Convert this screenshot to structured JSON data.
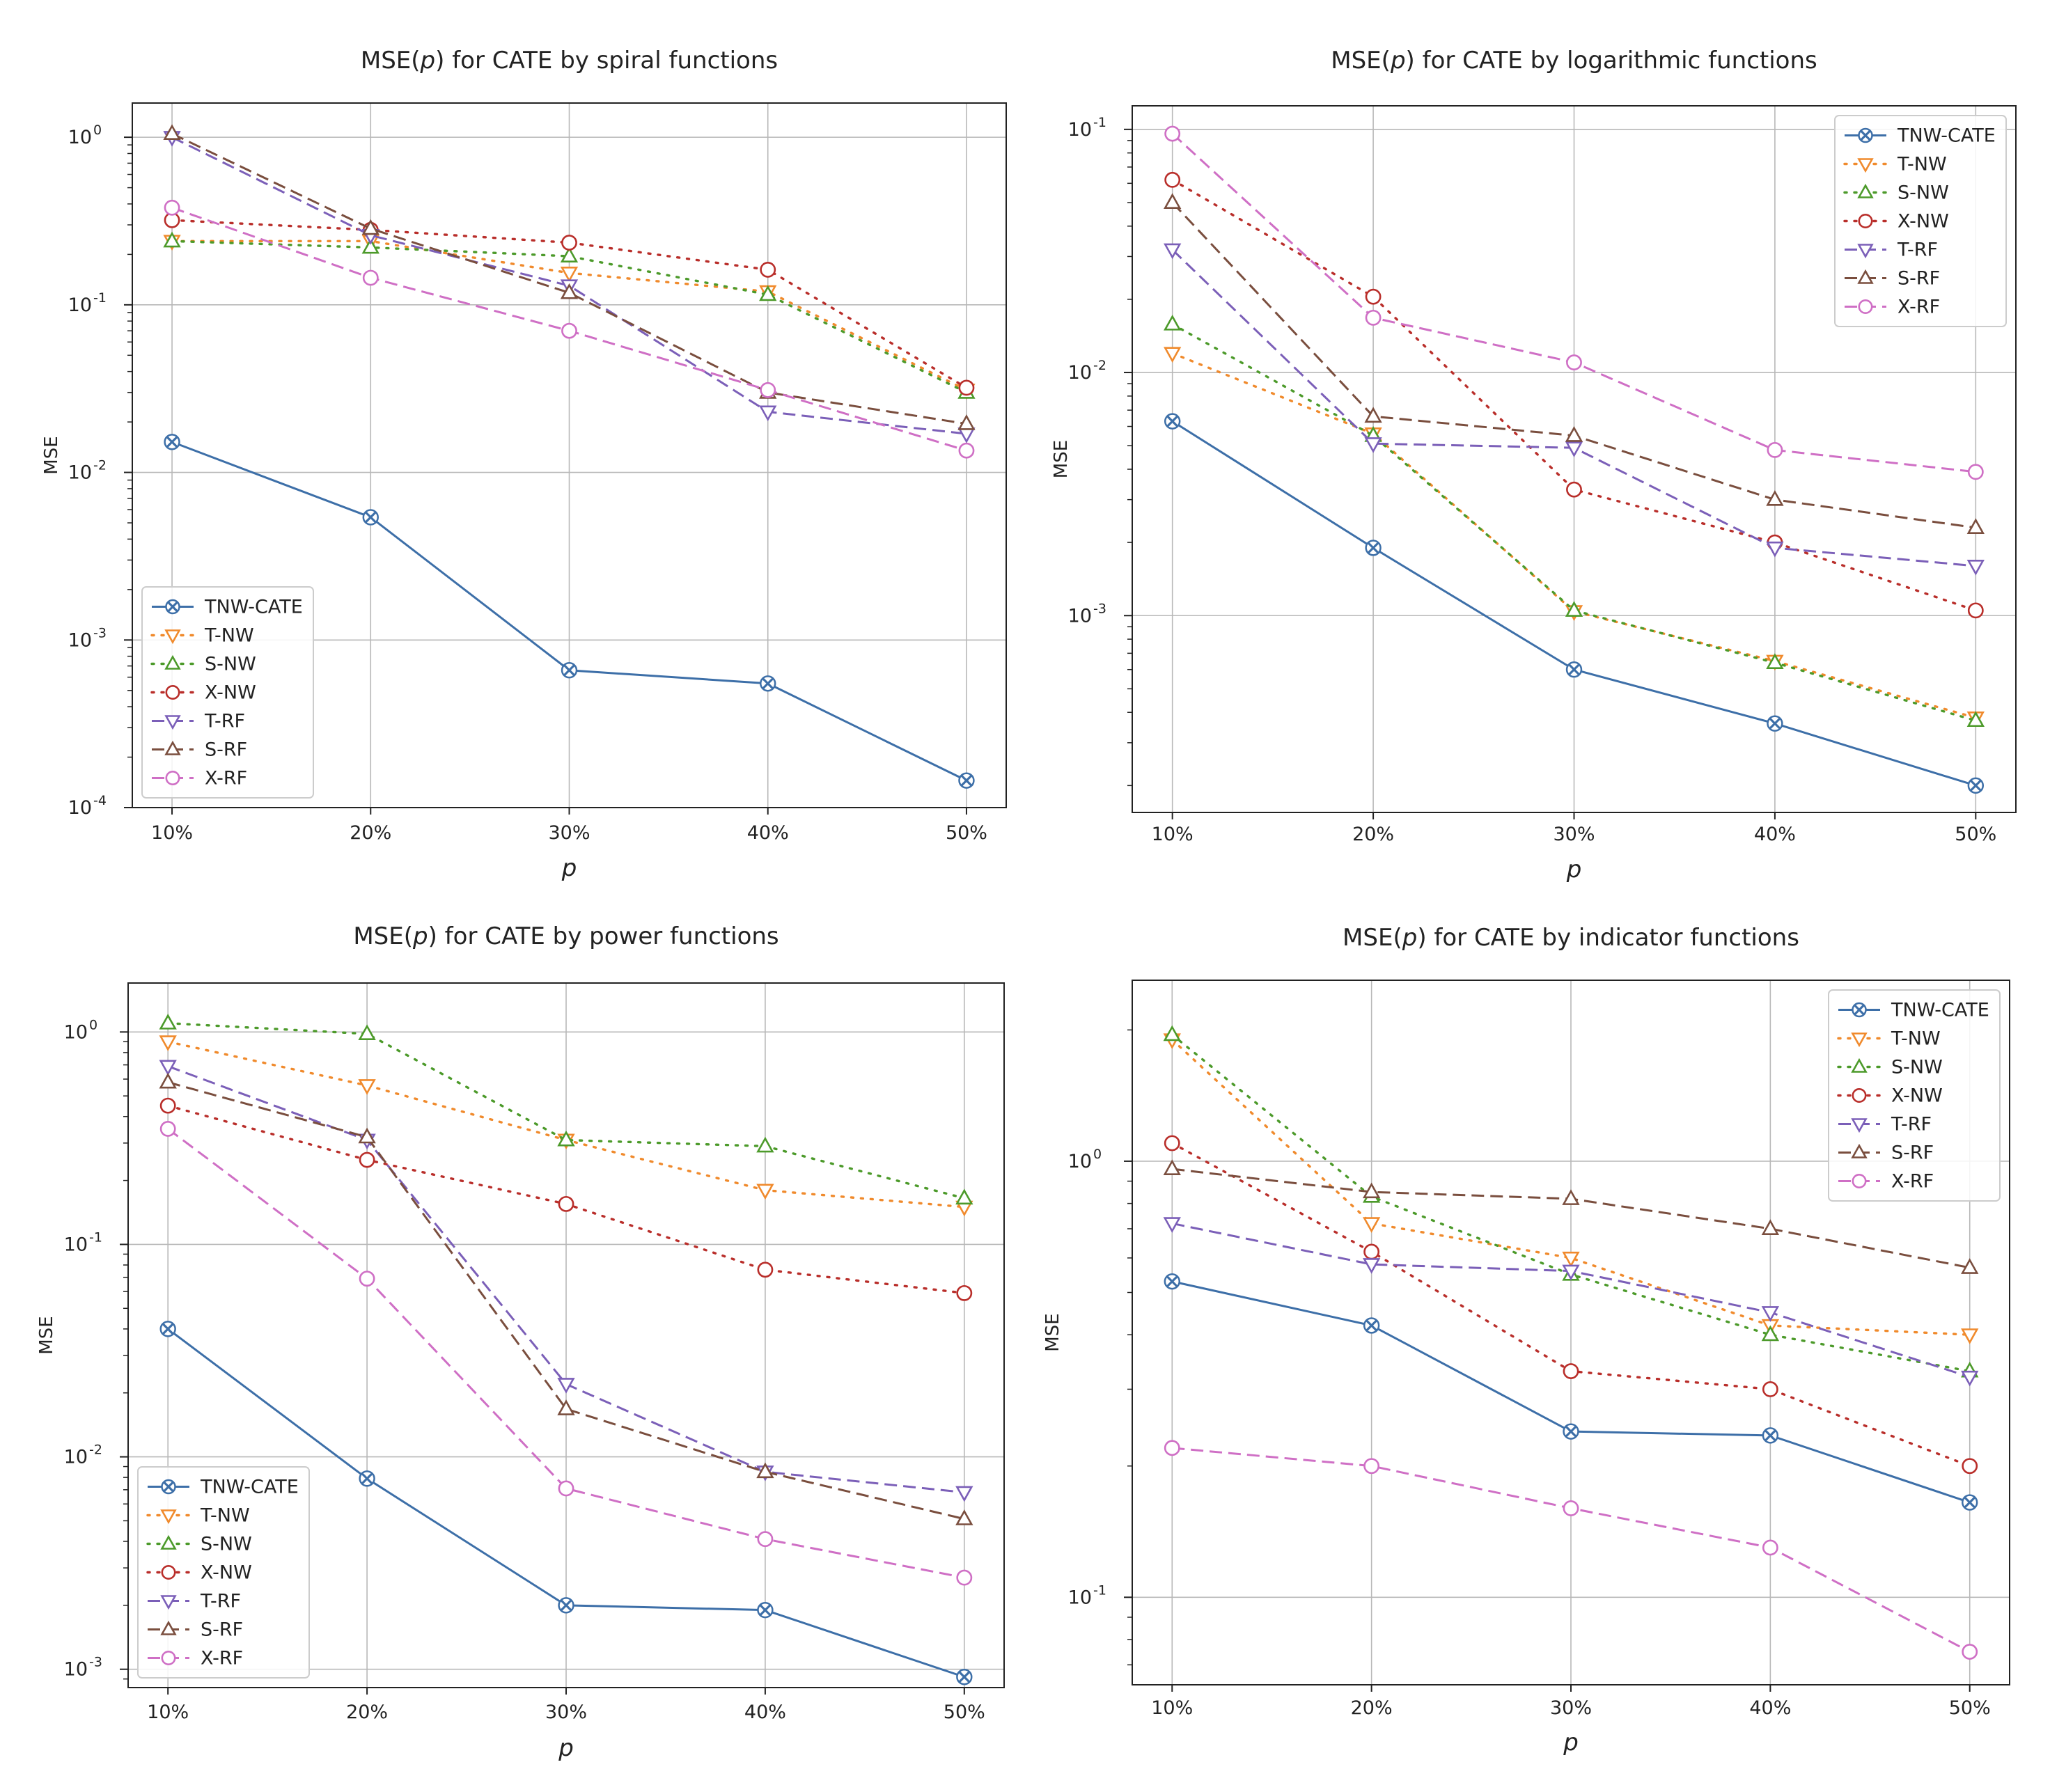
{
  "figure": {
    "background": "#ffffff"
  },
  "series_styles": [
    {
      "name": "TNW-CATE",
      "color": "#3d6fa8",
      "dash": "solid",
      "marker": "x"
    },
    {
      "name": "T-NW",
      "color": "#f08a2c",
      "dash": "dot",
      "marker": "tri-down"
    },
    {
      "name": "S-NW",
      "color": "#4c9a2a",
      "dash": "dot",
      "marker": "tri-up"
    },
    {
      "name": "X-NW",
      "color": "#b92e2a",
      "dash": "dot",
      "marker": "circle"
    },
    {
      "name": "T-RF",
      "color": "#7b5fb8",
      "dash": "dash",
      "marker": "tri-down"
    },
    {
      "name": "S-RF",
      "color": "#7a4e3e",
      "dash": "dash",
      "marker": "tri-up"
    },
    {
      "name": "X-RF",
      "color": "#cf6fc5",
      "dash": "dash",
      "marker": "circle"
    }
  ],
  "chart_data": [
    {
      "type": "line",
      "title_pre": "MSE(",
      "title_var": "p",
      "title_post": ") for CATE by spiral functions",
      "xlabel": "p",
      "ylabel": "MSE",
      "yscale": "log",
      "ylim": [
        0.0001,
        1.6
      ],
      "categories": [
        "10%",
        "20%",
        "30%",
        "40%",
        "50%"
      ],
      "yticks": [
        {
          "base": "10",
          "exp": "0",
          "value": 1
        },
        {
          "base": "10",
          "exp": "-1",
          "value": 0.1
        },
        {
          "base": "10",
          "exp": "-2",
          "value": 0.01
        },
        {
          "base": "10",
          "exp": "-3",
          "value": 0.001
        },
        {
          "base": "10",
          "exp": "-4",
          "value": 0.0001
        }
      ],
      "legend_position": "lower-left",
      "series": [
        {
          "name": "TNW-CATE",
          "values": [
            0.0152,
            0.0054,
            0.00066,
            0.00055,
            0.000145
          ]
        },
        {
          "name": "T-NW",
          "values": [
            0.24,
            0.24,
            0.155,
            0.12,
            0.031
          ]
        },
        {
          "name": "S-NW",
          "values": [
            0.24,
            0.22,
            0.195,
            0.115,
            0.03
          ]
        },
        {
          "name": "X-NW",
          "values": [
            0.32,
            0.28,
            0.235,
            0.162,
            0.032
          ]
        },
        {
          "name": "T-RF",
          "values": [
            1.0,
            0.26,
            0.13,
            0.023,
            0.017
          ]
        },
        {
          "name": "S-RF",
          "values": [
            1.05,
            0.285,
            0.118,
            0.03,
            0.0195
          ]
        },
        {
          "name": "X-RF",
          "values": [
            0.38,
            0.145,
            0.07,
            0.031,
            0.0135
          ]
        }
      ]
    },
    {
      "type": "line",
      "title_pre": "MSE(",
      "title_var": "p",
      "title_post": ") for CATE by logarithmic functions",
      "xlabel": "p",
      "ylabel": "MSE",
      "yscale": "log",
      "ylim": [
        0.000155,
        0.125
      ],
      "categories": [
        "10%",
        "20%",
        "30%",
        "40%",
        "50%"
      ],
      "yticks": [
        {
          "base": "10",
          "exp": "-1",
          "value": 0.1
        },
        {
          "base": "10",
          "exp": "-2",
          "value": 0.01
        },
        {
          "base": "10",
          "exp": "-3",
          "value": 0.001
        }
      ],
      "legend_position": "upper-right",
      "series": [
        {
          "name": "TNW-CATE",
          "values": [
            0.0063,
            0.0019,
            0.0006,
            0.00036,
            0.0002
          ]
        },
        {
          "name": "T-NW",
          "values": [
            0.012,
            0.0056,
            0.00104,
            0.00065,
            0.00038
          ]
        },
        {
          "name": "S-NW",
          "values": [
            0.0158,
            0.0055,
            0.00105,
            0.00064,
            0.00037
          ]
        },
        {
          "name": "X-NW",
          "values": [
            0.062,
            0.0205,
            0.0033,
            0.002,
            0.00105
          ]
        },
        {
          "name": "T-RF",
          "values": [
            0.032,
            0.0051,
            0.0049,
            0.0019,
            0.0016
          ]
        },
        {
          "name": "S-RF",
          "values": [
            0.05,
            0.0066,
            0.0055,
            0.003,
            0.0023
          ]
        },
        {
          "name": "X-RF",
          "values": [
            0.096,
            0.0168,
            0.011,
            0.0048,
            0.0039
          ]
        }
      ]
    },
    {
      "type": "line",
      "title_pre": "MSE(",
      "title_var": "p",
      "title_post": ") for CATE by power functions",
      "xlabel": "p",
      "ylabel": "MSE",
      "yscale": "log",
      "ylim": [
        0.00082,
        1.7
      ],
      "categories": [
        "10%",
        "20%",
        "30%",
        "40%",
        "50%"
      ],
      "yticks": [
        {
          "base": "10",
          "exp": "0",
          "value": 1
        },
        {
          "base": "10",
          "exp": "-1",
          "value": 0.1
        },
        {
          "base": "10",
          "exp": "-2",
          "value": 0.01
        },
        {
          "base": "10",
          "exp": "-3",
          "value": 0.001
        }
      ],
      "legend_position": "lower-left",
      "series": [
        {
          "name": "TNW-CATE",
          "values": [
            0.04,
            0.0079,
            0.002,
            0.0019,
            0.00092
          ]
        },
        {
          "name": "T-NW",
          "values": [
            0.9,
            0.56,
            0.31,
            0.18,
            0.15
          ]
        },
        {
          "name": "S-NW",
          "values": [
            1.1,
            0.98,
            0.31,
            0.29,
            0.165
          ]
        },
        {
          "name": "X-NW",
          "values": [
            0.45,
            0.25,
            0.155,
            0.076,
            0.059
          ]
        },
        {
          "name": "T-RF",
          "values": [
            0.69,
            0.31,
            0.022,
            0.0085,
            0.0068
          ]
        },
        {
          "name": "S-RF",
          "values": [
            0.58,
            0.32,
            0.0168,
            0.0085,
            0.0051
          ]
        },
        {
          "name": "X-RF",
          "values": [
            0.35,
            0.069,
            0.0071,
            0.0041,
            0.0027
          ]
        }
      ]
    },
    {
      "type": "line",
      "title_pre": "MSE(",
      "title_var": "p",
      "title_post": ") for CATE by indicator functions",
      "xlabel": "p",
      "ylabel": "MSE",
      "yscale": "log",
      "ylim": [
        0.063,
        2.6
      ],
      "categories": [
        "10%",
        "20%",
        "30%",
        "40%",
        "50%"
      ],
      "yticks": [
        {
          "base": "10",
          "exp": "0",
          "value": 1
        },
        {
          "base": "10",
          "exp": "-1",
          "value": 0.1
        }
      ],
      "legend_position": "upper-right",
      "series": [
        {
          "name": "TNW-CATE",
          "values": [
            0.53,
            0.42,
            0.24,
            0.235,
            0.165
          ]
        },
        {
          "name": "T-NW",
          "values": [
            1.9,
            0.72,
            0.6,
            0.42,
            0.4
          ]
        },
        {
          "name": "S-NW",
          "values": [
            1.95,
            0.83,
            0.55,
            0.4,
            0.33
          ]
        },
        {
          "name": "X-NW",
          "values": [
            1.1,
            0.62,
            0.33,
            0.3,
            0.2
          ]
        },
        {
          "name": "T-RF",
          "values": [
            0.72,
            0.58,
            0.56,
            0.45,
            0.32
          ]
        },
        {
          "name": "S-RF",
          "values": [
            0.96,
            0.85,
            0.82,
            0.7,
            0.57
          ]
        },
        {
          "name": "X-RF",
          "values": [
            0.22,
            0.2,
            0.16,
            0.13,
            0.075
          ]
        }
      ]
    }
  ]
}
